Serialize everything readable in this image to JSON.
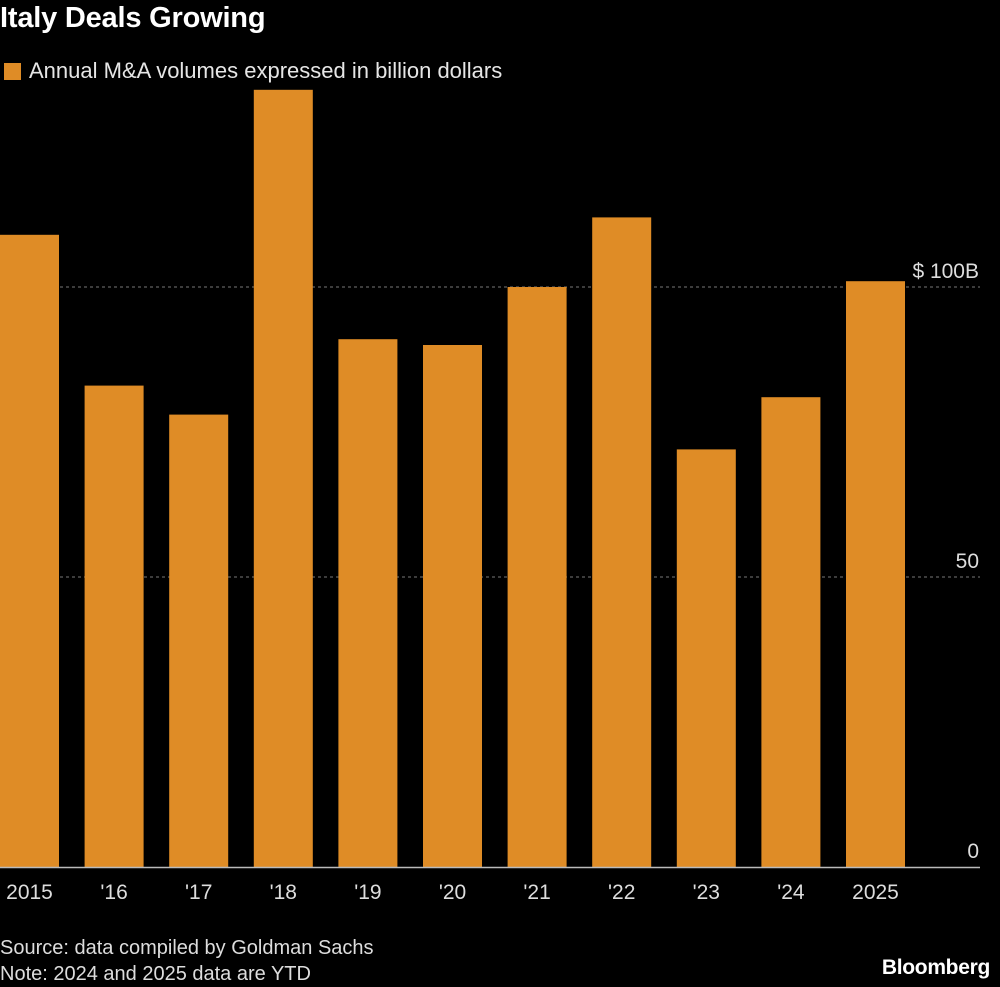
{
  "title": "Italy Deals Growing",
  "legend": {
    "label": "Annual M&A volumes expressed in billion dollars"
  },
  "colors": {
    "bar": "#df8c26",
    "background": "#000000",
    "grid": "#777777",
    "axis": "#bbbbbb",
    "tick_text": "#dddddd"
  },
  "chart_data": {
    "type": "bar",
    "categories": [
      "2015",
      "'16",
      "'17",
      "'18",
      "'19",
      "'20",
      "'21",
      "'22",
      "'23",
      "'24",
      "2025"
    ],
    "series": [
      {
        "name": "Annual M&A volumes expressed in billion dollars",
        "values": [
          109,
          83,
          78,
          134,
          91,
          90,
          100,
          112,
          72,
          81,
          101
        ]
      }
    ],
    "ylim": [
      0,
      140
    ],
    "yticks": [
      {
        "value": 0,
        "label": "0"
      },
      {
        "value": 50,
        "label": "50"
      },
      {
        "value": 100,
        "label": "$ 100B"
      }
    ],
    "grid": true,
    "yaxis_position": "right"
  },
  "footer": {
    "source": "Source: data compiled by Goldman Sachs",
    "note": "Note: 2024 and 2025 data are YTD",
    "brand": "Bloomberg"
  }
}
